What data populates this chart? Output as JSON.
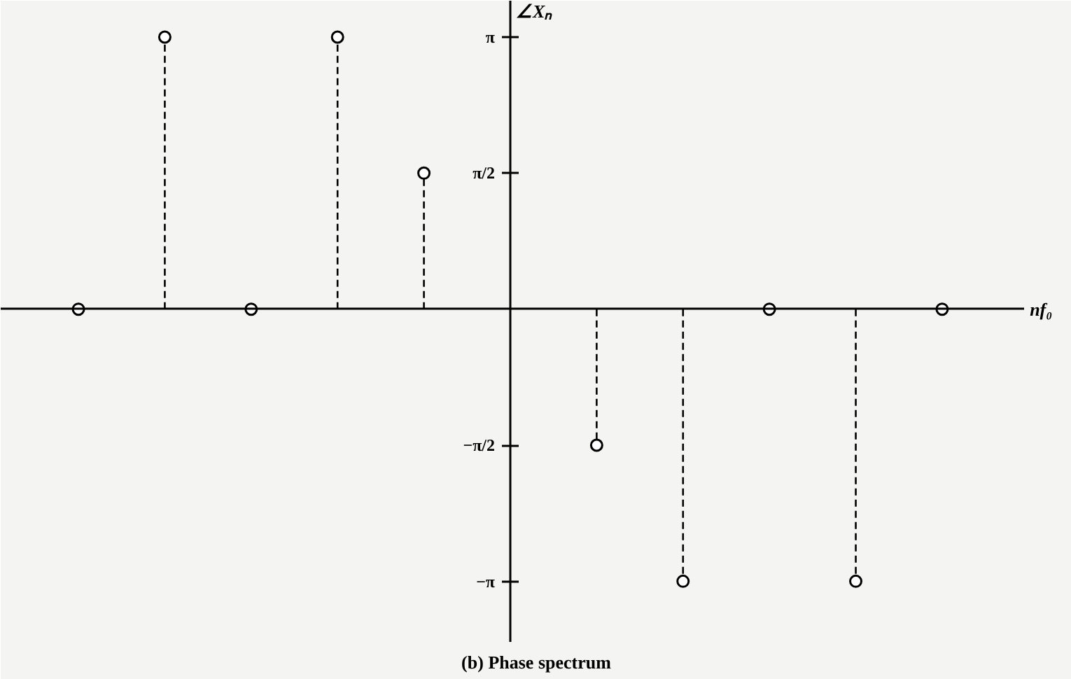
{
  "chart_data": {
    "type": "lollipop",
    "title": "(b) Phase spectrum",
    "xlabel": "nf₀",
    "ylabel": "∠Xₙ",
    "categories": [
      null,
      null,
      null,
      null,
      null,
      null,
      null,
      null,
      null,
      null,
      null
    ],
    "values": [
      0,
      3.14,
      0,
      3.14,
      1.57,
      null,
      -1.57,
      -3.14,
      0,
      -3.14,
      0
    ],
    "color": "#000000",
    "marker": "circle",
    "line_style": "dashed",
    "grid": false,
    "ylim": [
      -3.84,
      3.56
    ],
    "yticks": [
      {
        "value": -3.1416,
        "label": "−π"
      },
      {
        "value": -1.5708,
        "label": "−π/2"
      },
      {
        "value": 1.5708,
        "label": "π/2"
      },
      {
        "value": 3.1416,
        "label": "π"
      }
    ],
    "tick_labels": "y"
  }
}
